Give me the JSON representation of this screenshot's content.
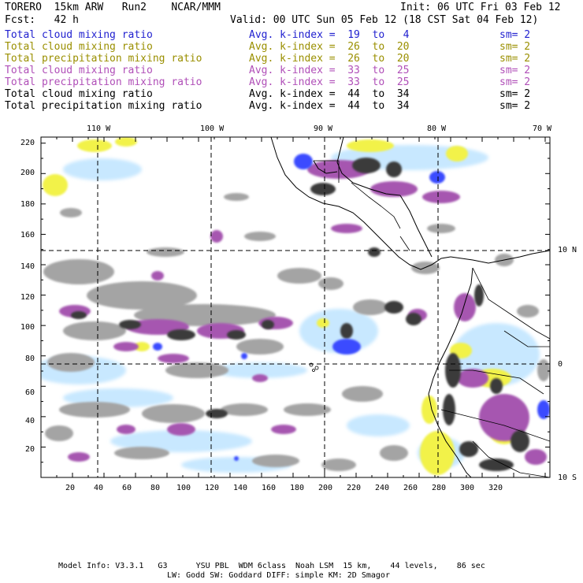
{
  "header": {
    "title_left": "TORERO  15km ARW   Run2    NCAR/MMM",
    "init": "Init: 06 UTC Fri 03 Feb 12",
    "fcst": "Fcst:   42 h",
    "valid": "Valid: 00 UTC Sun 05 Feb 12 (18 CST Sat 04 Feb 12)"
  },
  "legend": [
    {
      "name": "Total cloud mixing ratio",
      "kindex": "Avg. k-index =  19  to   4",
      "sm": "sm= 2",
      "color": "#1f1fcf"
    },
    {
      "name": "Total cloud mixing ratio",
      "kindex": "Avg. k-index =  26  to  20",
      "sm": "sm= 2",
      "color": "#9a8f00"
    },
    {
      "name": "Total precipitation mixing ratio",
      "kindex": "Avg. k-index =  26  to  20",
      "sm": "sm= 2",
      "color": "#9a8f00"
    },
    {
      "name": "Total cloud mixing ratio",
      "kindex": "Avg. k-index =  33  to  25",
      "sm": "sm= 2",
      "color": "#b04fb8"
    },
    {
      "name": "Total precipitation mixing ratio",
      "kindex": "Avg. k-index =  33  to  25",
      "sm": "sm= 2",
      "color": "#b04fb8"
    },
    {
      "name": "Total cloud mixing ratio",
      "kindex": "Avg. k-index =  44  to  34",
      "sm": "sm= 2",
      "color": "#000000"
    },
    {
      "name": "Total precipitation mixing ratio",
      "kindex": "Avg. k-index =  44  to  34",
      "sm": "sm= 2",
      "color": "#000000"
    }
  ],
  "axes": {
    "x_ticks": [
      "20",
      "40",
      "60",
      "80",
      "100",
      "120",
      "140",
      "160",
      "180",
      "200",
      "220",
      "240",
      "260",
      "280",
      "300",
      "320"
    ],
    "y_ticks": [
      "20",
      "40",
      "60",
      "80",
      "100",
      "120",
      "140",
      "160",
      "180",
      "200",
      "220"
    ],
    "lon_labels": [
      "110 W",
      "100 W",
      "90 W",
      "80 W",
      "70 W"
    ],
    "lat_labels": [
      "10 N",
      "0",
      "10 S"
    ]
  },
  "footer": {
    "line1": "Model Info: V3.3.1   G3      YSU PBL  WDM 6class  Noah LSM  15 km,    44 levels,    86 sec",
    "line2": "LW: Godd SW: Goddard DIFF: simple KM: 2D Smagor"
  },
  "colors": {
    "gray": "#9a9a9a",
    "dark": "#3a3a3a",
    "purple": "#a656b0",
    "yellow": "#f2f24a",
    "lightblue": "#c8e8ff",
    "blue": "#3a4cff"
  }
}
